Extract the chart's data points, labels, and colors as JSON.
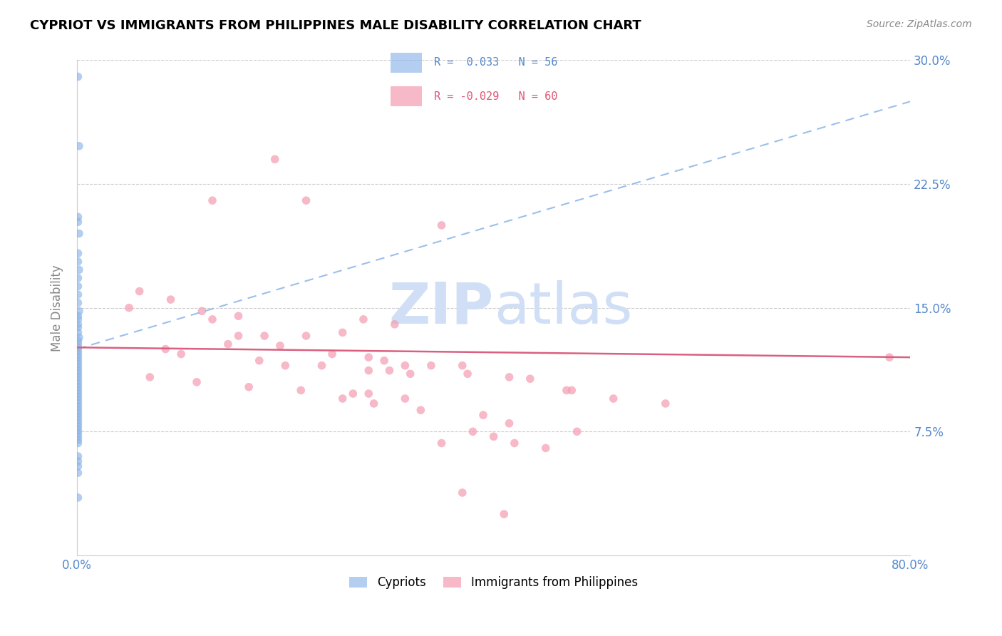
{
  "title": "CYPRIOT VS IMMIGRANTS FROM PHILIPPINES MALE DISABILITY CORRELATION CHART",
  "source": "Source: ZipAtlas.com",
  "ylabel": "Male Disability",
  "xlim": [
    0.0,
    0.8
  ],
  "ylim": [
    0.0,
    0.3
  ],
  "cypriot_color": "#8ab4e8",
  "philippines_color": "#f5a0b5",
  "trend_cypriot_color": "#8ab4e8",
  "trend_philippines_color": "#d96080",
  "watermark": "ZIPatlas",
  "R_cyp": 0.033,
  "N_cyp": 56,
  "R_phi": -0.029,
  "N_phi": 60,
  "cypriot_x": [
    0.001,
    0.002,
    0.001,
    0.001,
    0.002,
    0.001,
    0.001,
    0.002,
    0.001,
    0.001,
    0.001,
    0.001,
    0.002,
    0.001,
    0.001,
    0.001,
    0.001,
    0.001,
    0.002,
    0.001,
    0.001,
    0.001,
    0.001,
    0.001,
    0.001,
    0.001,
    0.001,
    0.001,
    0.001,
    0.001,
    0.001,
    0.001,
    0.001,
    0.001,
    0.001,
    0.001,
    0.001,
    0.001,
    0.001,
    0.001,
    0.001,
    0.001,
    0.001,
    0.001,
    0.001,
    0.001,
    0.001,
    0.001,
    0.001,
    0.001,
    0.001,
    0.001,
    0.001,
    0.001,
    0.001,
    0.001
  ],
  "cypriot_y": [
    0.29,
    0.248,
    0.205,
    0.202,
    0.195,
    0.183,
    0.178,
    0.173,
    0.168,
    0.163,
    0.158,
    0.153,
    0.148,
    0.145,
    0.143,
    0.14,
    0.138,
    0.135,
    0.132,
    0.13,
    0.128,
    0.126,
    0.124,
    0.122,
    0.12,
    0.118,
    0.116,
    0.114,
    0.112,
    0.11,
    0.108,
    0.106,
    0.104,
    0.102,
    0.1,
    0.098,
    0.096,
    0.094,
    0.092,
    0.09,
    0.088,
    0.086,
    0.084,
    0.082,
    0.08,
    0.078,
    0.076,
    0.074,
    0.072,
    0.07,
    0.068,
    0.06,
    0.057,
    0.054,
    0.05,
    0.035
  ],
  "philippines_x": [
    0.13,
    0.19,
    0.22,
    0.35,
    0.05,
    0.12,
    0.155,
    0.13,
    0.09,
    0.18,
    0.22,
    0.275,
    0.305,
    0.255,
    0.145,
    0.085,
    0.1,
    0.175,
    0.2,
    0.235,
    0.28,
    0.32,
    0.07,
    0.115,
    0.165,
    0.215,
    0.265,
    0.315,
    0.06,
    0.155,
    0.195,
    0.245,
    0.295,
    0.34,
    0.39,
    0.3,
    0.28,
    0.315,
    0.375,
    0.435,
    0.475,
    0.28,
    0.255,
    0.285,
    0.33,
    0.37,
    0.415,
    0.47,
    0.515,
    0.565,
    0.415,
    0.38,
    0.4,
    0.78,
    0.35,
    0.42,
    0.45,
    0.48,
    0.37,
    0.41
  ],
  "philippines_y": [
    0.215,
    0.24,
    0.215,
    0.2,
    0.15,
    0.148,
    0.145,
    0.143,
    0.155,
    0.133,
    0.133,
    0.143,
    0.14,
    0.135,
    0.128,
    0.125,
    0.122,
    0.118,
    0.115,
    0.115,
    0.112,
    0.11,
    0.108,
    0.105,
    0.102,
    0.1,
    0.098,
    0.095,
    0.16,
    0.133,
    0.127,
    0.122,
    0.118,
    0.115,
    0.085,
    0.112,
    0.12,
    0.115,
    0.11,
    0.107,
    0.1,
    0.098,
    0.095,
    0.092,
    0.088,
    0.115,
    0.108,
    0.1,
    0.095,
    0.092,
    0.08,
    0.075,
    0.072,
    0.12,
    0.068,
    0.068,
    0.065,
    0.075,
    0.038,
    0.025
  ]
}
